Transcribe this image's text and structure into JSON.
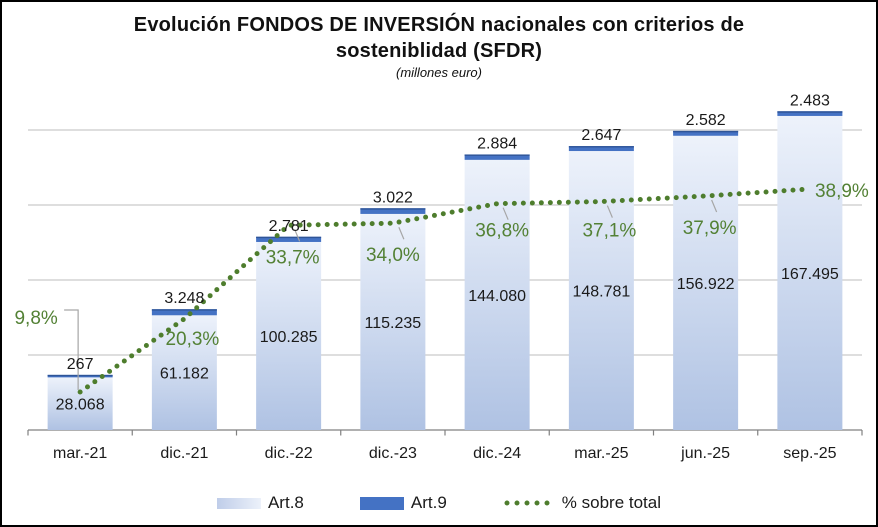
{
  "chart_data": {
    "type": "bar",
    "combo": "stacked-bar-with-line",
    "title": {
      "line1": "Evolución FONDOS DE INVERSIÓN nacionales con criterios de",
      "line2": "sosteniblidad (SFDR)",
      "subtitle": "(millones euro)"
    },
    "categories": [
      "mar.-21",
      "dic.-21",
      "dic.-22",
      "dic.-23",
      "dic.-24",
      "mar.-25",
      "jun.-25",
      "sep.-25"
    ],
    "series": [
      {
        "name": "Art.8",
        "type": "bar",
        "stack_order": 0,
        "values": [
          28068,
          61182,
          100285,
          115235,
          144080,
          148781,
          156922,
          167495
        ],
        "labels": [
          "28.068",
          "61.182",
          "100.285",
          "115.235",
          "144.080",
          "148.781",
          "156.922",
          "167.495"
        ],
        "color_top": "#edf2fb",
        "color_bottom": "#afc2e3"
      },
      {
        "name": "Art.9",
        "type": "bar",
        "stack_order": 1,
        "values": [
          267,
          3248,
          2781,
          3022,
          2884,
          2647,
          2582,
          2483
        ],
        "labels": [
          "267",
          "3.248",
          "2.781",
          "3.022",
          "2.884",
          "2.647",
          "2.582",
          "2.483"
        ],
        "color": "#4472c4",
        "color_edge": "#2f5597"
      },
      {
        "name": "% sobre total",
        "type": "line",
        "axis": "secondary",
        "style": "dotted",
        "values": [
          9.8,
          20.3,
          33.7,
          34.0,
          36.8,
          37.1,
          37.9,
          38.9
        ],
        "labels": [
          "9,8%",
          "20,3%",
          "33,7%",
          "34,0%",
          "36,8%",
          "37,1%",
          "37,9%",
          "38,9%"
        ],
        "color": "#4e7d2d",
        "label_color": "#538135"
      }
    ],
    "primary_axis": {
      "min": 0,
      "max": 200000,
      "gridline_step": 40000,
      "gridlines_shown": [
        40000,
        80000,
        120000,
        160000
      ],
      "labels_shown": false
    },
    "grid": true,
    "legend": {
      "position": "bottom",
      "items": [
        {
          "label": "Art.8",
          "swatch": "gradient-bar"
        },
        {
          "label": "Art.9",
          "swatch": "solid-bar"
        },
        {
          "label": "% sobre total",
          "swatch": "green-dots"
        }
      ]
    },
    "colors": {
      "gridline": "#c9c9c9",
      "axis": "#808080",
      "leader": "#a6a6a6",
      "label_text": "#1a1a1a"
    }
  }
}
